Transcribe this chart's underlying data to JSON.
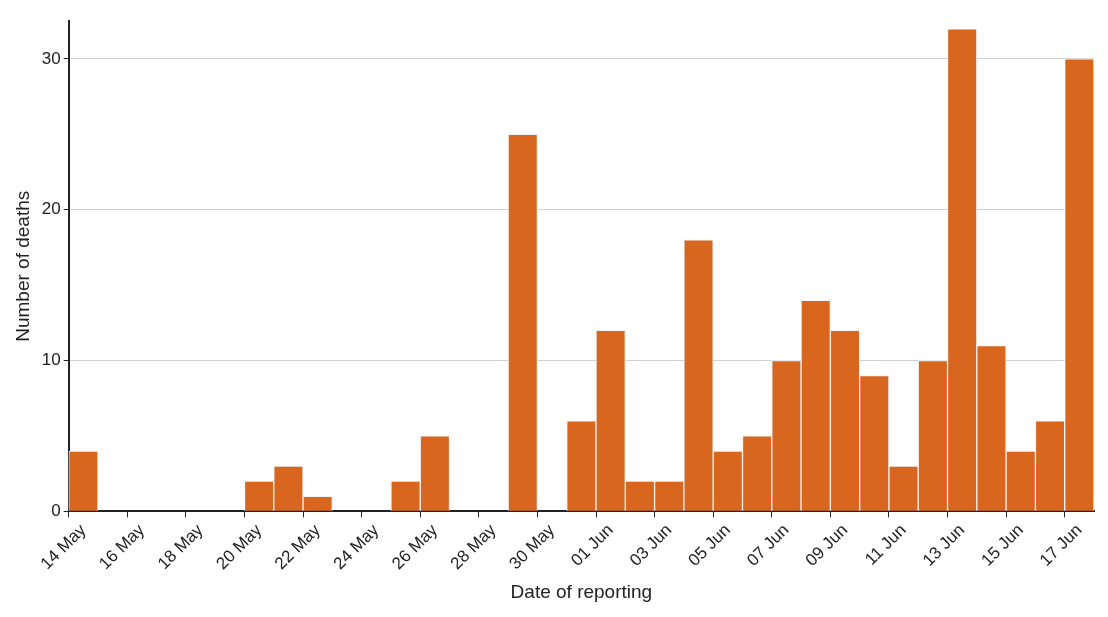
{
  "chart_data": {
    "type": "bar",
    "xlabel": "Date of reporting",
    "ylabel": "Number of deaths",
    "categories": [
      "14 May",
      null,
      "16 May",
      null,
      "18 May",
      null,
      "20 May",
      null,
      "22 May",
      null,
      "24 May",
      null,
      "26 May",
      null,
      "28 May",
      null,
      "30 May",
      null,
      "01 Jun",
      null,
      "03 Jun",
      null,
      "05 Jun",
      null,
      "07 Jun",
      null,
      "09 Jun",
      null,
      "11 Jun",
      null,
      "13 Jun",
      null,
      "15 Jun",
      null,
      "17 Jun"
    ],
    "values": [
      4,
      0,
      0,
      0,
      0,
      0,
      2,
      3,
      1,
      0,
      0,
      2,
      5,
      0,
      0,
      25,
      0,
      6,
      12,
      2,
      2,
      18,
      4,
      5,
      10,
      14,
      12,
      9,
      3,
      10,
      32,
      11,
      4,
      6,
      30
    ],
    "color": "#d9661f",
    "ylim": [
      0,
      32.5
    ],
    "yticks": [
      0,
      10,
      20,
      30
    ],
    "grid": "y",
    "legend": false
  }
}
